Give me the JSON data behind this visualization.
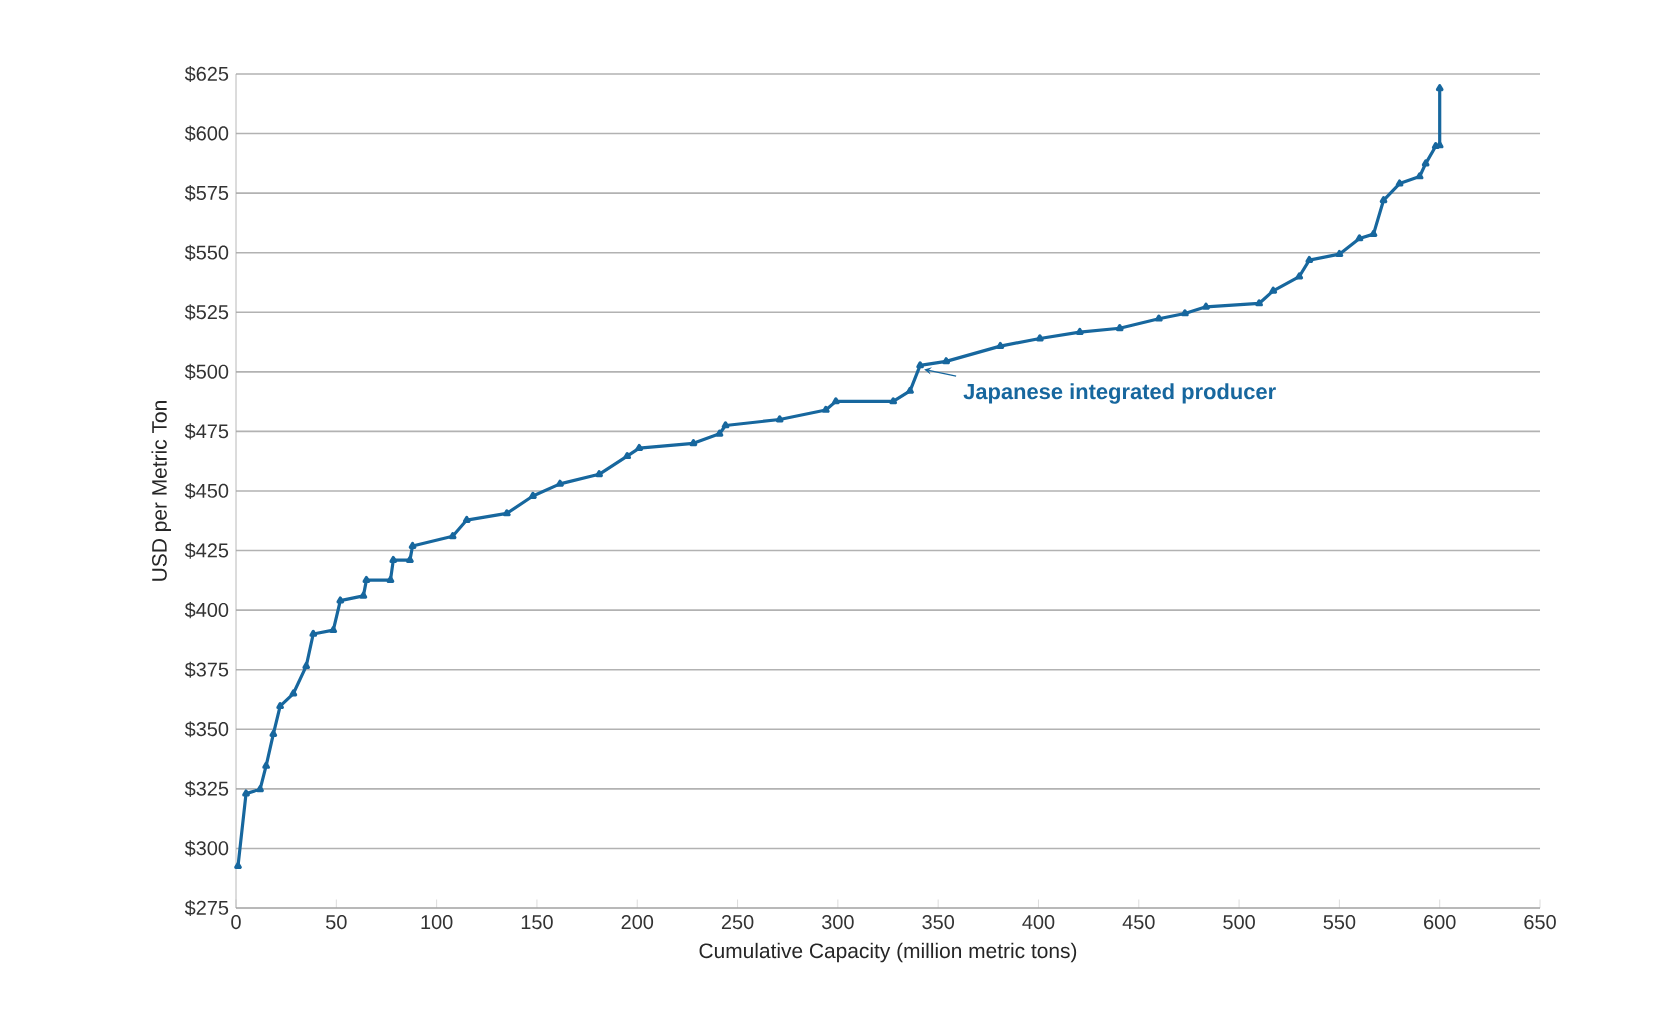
{
  "chart_data": {
    "type": "line",
    "xlabel": "Cumulative Capacity (million metric tons)",
    "ylabel": "USD per Metric Ton",
    "color": "#17679e",
    "marker": "triangle",
    "line_style": "solid",
    "grid": "y",
    "x": [
      1,
      5,
      12,
      15,
      18.6,
      22,
      28.6,
      35,
      38.5,
      48.5,
      52,
      63.5,
      65,
      77,
      78.4,
      86.7,
      88,
      108,
      115,
      135,
      148,
      161.5,
      181,
      195,
      201,
      228,
      241,
      244,
      271,
      294,
      299,
      327.6,
      336,
      341,
      354,
      381,
      400.7,
      420.6,
      440.5,
      460,
      473,
      483.5,
      510,
      517,
      530,
      535,
      550,
      560,
      567,
      572,
      580,
      590,
      593,
      598,
      600,
      600
    ],
    "values": [
      292.6,
      323,
      324.8,
      334.6,
      348,
      359.7,
      365,
      376.5,
      390,
      391.6,
      404,
      406,
      412.6,
      412.6,
      421,
      421,
      426.9,
      431,
      437.8,
      440.6,
      447.9,
      453,
      457,
      464.6,
      468,
      470,
      474,
      477.5,
      480,
      484,
      487.6,
      487.6,
      492,
      502.7,
      504.4,
      510.8,
      514,
      516.7,
      518.3,
      522.3,
      524.5,
      527.3,
      528.7,
      534,
      540,
      546.9,
      549.4,
      556,
      557.8,
      572,
      579,
      582,
      587.4,
      594.7,
      595,
      619
    ],
    "xlim": [
      0,
      650
    ],
    "xticks": [
      0,
      50,
      100,
      150,
      200,
      250,
      300,
      350,
      400,
      450,
      500,
      550,
      600,
      650
    ],
    "ylim": [
      275,
      625
    ],
    "yticks": [
      {
        "value": 275,
        "label": "$275"
      },
      {
        "value": 300,
        "label": "$300"
      },
      {
        "value": 325,
        "label": "$325"
      },
      {
        "value": 350,
        "label": "$350"
      },
      {
        "value": 375,
        "label": "$375"
      },
      {
        "value": 400,
        "label": "$400"
      },
      {
        "value": 425,
        "label": "$425"
      },
      {
        "value": 450,
        "label": "$450"
      },
      {
        "value": 475,
        "label": "$475"
      },
      {
        "value": 500,
        "label": "$500"
      },
      {
        "value": 525,
        "label": "$525"
      },
      {
        "value": 550,
        "label": "$550"
      },
      {
        "value": 575,
        "label": "$575"
      },
      {
        "value": 600,
        "label": "$600"
      },
      {
        "value": 625,
        "label": "$625"
      }
    ],
    "annotations": [
      {
        "text": "Japanese integrated producer",
        "x": 341,
        "y": 502.7
      }
    ]
  }
}
